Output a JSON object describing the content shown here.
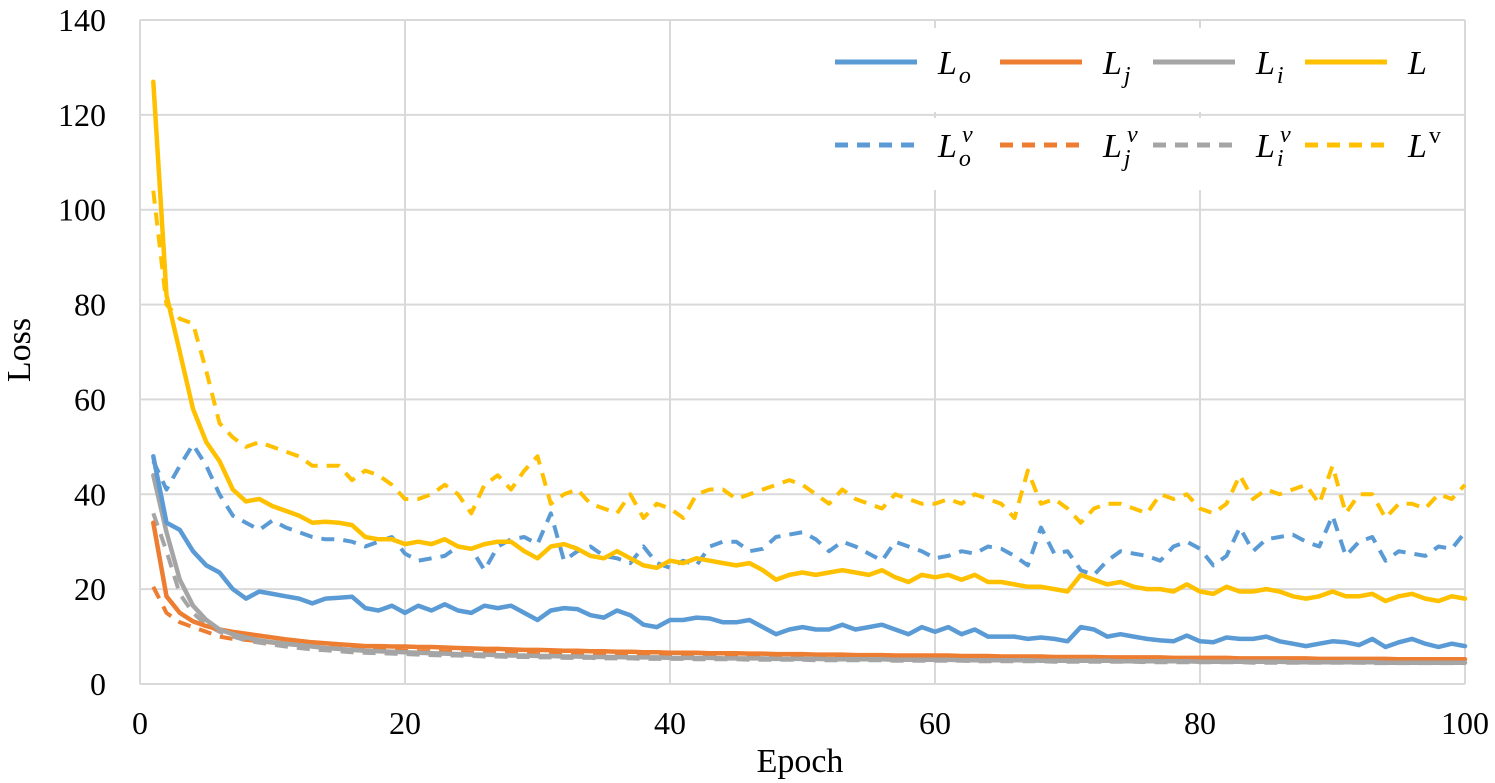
{
  "chart_data": {
    "type": "line",
    "title": "",
    "xlabel": "Epoch",
    "ylabel": "Loss",
    "xlim": [
      0,
      100
    ],
    "ylim": [
      0,
      140
    ],
    "xticks": [
      0,
      20,
      40,
      60,
      80,
      100
    ],
    "yticks": [
      0,
      20,
      40,
      60,
      80,
      100,
      120,
      140
    ],
    "grid": true,
    "legend_position": "top-right",
    "x": [
      1,
      2,
      3,
      4,
      5,
      6,
      7,
      8,
      9,
      10,
      11,
      12,
      13,
      14,
      15,
      16,
      17,
      18,
      19,
      20,
      21,
      22,
      23,
      24,
      25,
      26,
      27,
      28,
      29,
      30,
      31,
      32,
      33,
      34,
      35,
      36,
      37,
      38,
      39,
      40,
      41,
      42,
      43,
      44,
      45,
      46,
      47,
      48,
      49,
      50,
      51,
      52,
      53,
      54,
      55,
      56,
      57,
      58,
      59,
      60,
      61,
      62,
      63,
      64,
      65,
      66,
      67,
      68,
      69,
      70,
      71,
      72,
      73,
      74,
      75,
      76,
      77,
      78,
      79,
      80,
      81,
      82,
      83,
      84,
      85,
      86,
      87,
      88,
      89,
      90,
      91,
      92,
      93,
      94,
      95,
      96,
      97,
      98,
      99,
      100
    ],
    "series": [
      {
        "name": "L_o",
        "label_main": "L",
        "label_sub": "o",
        "label_sup": "",
        "color": "#5b9bd5",
        "dash": "solid",
        "values": [
          48,
          34,
          32.5,
          28,
          25,
          23.5,
          20,
          18,
          19.5,
          19,
          18.5,
          18,
          17,
          18,
          18.2,
          18.4,
          16,
          15.5,
          16.5,
          15,
          16.5,
          15.5,
          16.8,
          15.5,
          15,
          16.5,
          16,
          16.5,
          15,
          13.5,
          15.5,
          16,
          15.8,
          14.5,
          14,
          15.5,
          14.5,
          12.5,
          12,
          13.5,
          13.5,
          14,
          13.8,
          13,
          13,
          13.5,
          12,
          10.5,
          11.5,
          12,
          11.5,
          11.5,
          12.5,
          11.5,
          12,
          12.5,
          11.5,
          10.5,
          12,
          11,
          12,
          10.5,
          11.5,
          10,
          10,
          10,
          9.5,
          9.8,
          9.5,
          9,
          12,
          11.5,
          10,
          10.5,
          10,
          9.5,
          9.2,
          9,
          10.2,
          9,
          8.8,
          9.8,
          9.5,
          9.5,
          10,
          9,
          8.5,
          8,
          8.5,
          9,
          8.8,
          8.2,
          9.5,
          7.8,
          8.8,
          9.5,
          8.5,
          7.8,
          8.5,
          8
        ]
      },
      {
        "name": "L_j",
        "label_main": "L",
        "label_sub": "j",
        "label_sup": "",
        "color": "#ed7d31",
        "dash": "solid",
        "values": [
          34,
          18.5,
          15,
          13.2,
          12.2,
          11.5,
          11,
          10.6,
          10.2,
          9.8,
          9.4,
          9.1,
          8.8,
          8.6,
          8.4,
          8.2,
          8,
          8,
          7.9,
          7.9,
          7.8,
          7.8,
          7.7,
          7.6,
          7.5,
          7.4,
          7.4,
          7.3,
          7.2,
          7.2,
          7.1,
          7,
          7,
          6.9,
          6.9,
          6.8,
          6.8,
          6.7,
          6.7,
          6.6,
          6.6,
          6.6,
          6.5,
          6.5,
          6.5,
          6.4,
          6.4,
          6.3,
          6.3,
          6.3,
          6.2,
          6.2,
          6.2,
          6.1,
          6.1,
          6.1,
          6,
          6,
          6,
          6,
          6,
          5.9,
          5.9,
          5.9,
          5.8,
          5.8,
          5.8,
          5.8,
          5.7,
          5.7,
          5.7,
          5.7,
          5.6,
          5.6,
          5.6,
          5.6,
          5.6,
          5.5,
          5.5,
          5.5,
          5.5,
          5.5,
          5.4,
          5.4,
          5.4,
          5.4,
          5.4,
          5.4,
          5.3,
          5.3,
          5.3,
          5.3,
          5.3,
          5.3,
          5.2,
          5.2,
          5.2,
          5.2,
          5.2,
          5.2
        ]
      },
      {
        "name": "L_i",
        "label_main": "L",
        "label_sub": "i",
        "label_sup": "",
        "color": "#a5a5a5",
        "dash": "solid",
        "values": [
          44,
          32,
          22,
          16.5,
          13.5,
          11.5,
          10.5,
          9.8,
          9.2,
          8.8,
          8.5,
          8.2,
          7.9,
          7.6,
          7.4,
          7.2,
          7,
          6.9,
          6.8,
          6.7,
          6.6,
          6.5,
          6.4,
          6.3,
          6.2,
          6.2,
          6.1,
          6,
          6,
          5.9,
          5.9,
          5.8,
          5.8,
          5.7,
          5.7,
          5.7,
          5.6,
          5.6,
          5.6,
          5.5,
          5.5,
          5.5,
          5.5,
          5.4,
          5.4,
          5.4,
          5.4,
          5.3,
          5.3,
          5.3,
          5.3,
          5.2,
          5.2,
          5.2,
          5.2,
          5.2,
          5.1,
          5.1,
          5.1,
          5.1,
          5.1,
          5,
          5,
          5,
          5,
          5,
          5,
          4.9,
          4.9,
          4.9,
          4.9,
          4.9,
          4.9,
          4.8,
          4.8,
          4.8,
          4.8,
          4.8,
          4.8,
          4.7,
          4.7,
          4.7,
          4.7,
          4.7,
          4.7,
          4.7,
          4.6,
          4.6,
          4.6,
          4.6,
          4.6,
          4.6,
          4.6,
          4.5,
          4.5,
          4.5,
          4.5,
          4.5,
          4.5,
          4.5
        ]
      },
      {
        "name": "L",
        "label_main": "L",
        "label_sub": "",
        "label_sup": "",
        "color": "#ffc000",
        "dash": "solid",
        "values": [
          127,
          82,
          70,
          58,
          51,
          47,
          41,
          38.5,
          39,
          37.5,
          36.5,
          35.5,
          34,
          34.2,
          34,
          33.5,
          31,
          30.5,
          30.5,
          29.5,
          30,
          29.5,
          30.5,
          29,
          28.5,
          29.5,
          30,
          30,
          28,
          26.5,
          29,
          29.5,
          28.5,
          27,
          26.5,
          28,
          26.5,
          25,
          24.5,
          26,
          25.5,
          26.5,
          26,
          25.5,
          25,
          25.5,
          24,
          22,
          23,
          23.5,
          23,
          23.5,
          24,
          23.5,
          23,
          24,
          22.5,
          21.5,
          23,
          22.5,
          23,
          22,
          23,
          21.5,
          21.5,
          21,
          20.5,
          20.5,
          20,
          19.5,
          23,
          22,
          21,
          21.5,
          20.5,
          20,
          20,
          19.5,
          21,
          19.5,
          19,
          20.5,
          19.5,
          19.5,
          20,
          19.5,
          18.5,
          18,
          18.5,
          19.5,
          18.5,
          18.5,
          19,
          17.5,
          18.5,
          19,
          18,
          17.5,
          18.5,
          18
        ]
      },
      {
        "name": "L_o^v",
        "label_main": "L",
        "label_sub": "o",
        "label_sup": "v",
        "color": "#5b9bd5",
        "dash": "dashed",
        "values": [
          47,
          41,
          46,
          50.5,
          46,
          40,
          35.5,
          34,
          32.5,
          34.5,
          33,
          32,
          31,
          30.5,
          30.5,
          30,
          29,
          30,
          31,
          27.5,
          26,
          26.5,
          27,
          29,
          28.5,
          24,
          29,
          30.5,
          31,
          29.5,
          36,
          26,
          28,
          29,
          27,
          26.5,
          25.5,
          29,
          25.5,
          24.5,
          26,
          25,
          29,
          30,
          30,
          28,
          28.5,
          31,
          31.5,
          32,
          30.5,
          28,
          30,
          29,
          27.5,
          26,
          30,
          29,
          28,
          26.5,
          27,
          28,
          27.5,
          29,
          28.5,
          27,
          25,
          33,
          27.5,
          28,
          24,
          23,
          26,
          28,
          27.5,
          27,
          26,
          29,
          30,
          28.5,
          25,
          27,
          33,
          28,
          30.5,
          31,
          31.5,
          30,
          29,
          35.5,
          27,
          30,
          31,
          26,
          28,
          27.5,
          27,
          29,
          28.5,
          32
        ]
      },
      {
        "name": "L_j^v",
        "label_main": "L",
        "label_sub": "j",
        "label_sup": "v",
        "color": "#ed7d31",
        "dash": "dashed",
        "values": [
          20.5,
          15,
          13,
          12,
          11,
          10,
          9.5,
          9.3,
          9,
          8.7,
          8.4,
          8.2,
          7.9,
          7.7,
          7.5,
          7.4,
          7.3,
          7.2,
          7.1,
          7,
          6.9,
          6.9,
          6.8,
          6.7,
          6.6,
          6.6,
          6.5,
          6.5,
          6.4,
          6.3,
          6.3,
          6.2,
          6.2,
          6.1,
          6.1,
          6,
          6,
          6,
          5.9,
          5.9,
          5.9,
          5.8,
          5.8,
          5.8,
          5.7,
          5.7,
          5.7,
          5.7,
          5.6,
          5.6,
          5.6,
          5.6,
          5.5,
          5.5,
          5.5,
          5.5,
          5.5,
          5.4,
          5.4,
          5.4,
          5.4,
          5.4,
          5.3,
          5.3,
          5.3,
          5.3,
          5.3,
          5.3,
          5.2,
          5.2,
          5.2,
          5.2,
          5.2,
          5.2,
          5.2,
          5.1,
          5.1,
          5.1,
          5.1,
          5.1,
          5.1,
          5.1,
          5,
          5,
          5,
          5,
          5,
          5,
          5,
          5,
          4.9,
          4.9,
          4.9,
          4.9,
          4.9,
          4.9,
          4.9,
          4.9,
          4.9,
          4.8
        ]
      },
      {
        "name": "L_i^v",
        "label_main": "L",
        "label_sub": "i",
        "label_sup": "v",
        "color": "#a5a5a5",
        "dash": "dashed",
        "values": [
          36,
          28,
          19,
          15,
          12.5,
          11,
          10,
          9.2,
          8.7,
          8.3,
          7.9,
          7.6,
          7.3,
          7.1,
          6.9,
          6.7,
          6.6,
          6.5,
          6.4,
          6.3,
          6.2,
          6.1,
          6,
          6,
          5.9,
          5.8,
          5.8,
          5.7,
          5.7,
          5.6,
          5.6,
          5.5,
          5.5,
          5.5,
          5.4,
          5.4,
          5.4,
          5.3,
          5.3,
          5.3,
          5.3,
          5.2,
          5.2,
          5.2,
          5.2,
          5.1,
          5.1,
          5.1,
          5.1,
          5.1,
          5,
          5,
          5,
          5,
          5,
          5,
          4.9,
          4.9,
          4.9,
          4.9,
          4.9,
          4.9,
          4.8,
          4.8,
          4.8,
          4.8,
          4.8,
          4.8,
          4.7,
          4.7,
          4.7,
          4.7,
          4.7,
          4.7,
          4.7,
          4.6,
          4.6,
          4.6,
          4.6,
          4.6,
          4.6,
          4.6,
          4.6,
          4.5,
          4.5,
          4.5,
          4.5,
          4.5,
          4.5,
          4.5,
          4.5,
          4.5,
          4.4,
          4.4,
          4.4,
          4.4,
          4.4,
          4.4,
          4.4,
          4.4
        ]
      },
      {
        "name": "L^v",
        "label_main": "L",
        "label_sub": "",
        "label_sup": "v",
        "color": "#ffc000",
        "dash": "dashed",
        "values": [
          104,
          80,
          77,
          76,
          66,
          55,
          52,
          50,
          51,
          50,
          49,
          48,
          46,
          46,
          46,
          43,
          45,
          44,
          42,
          39,
          39,
          40,
          42,
          40,
          36,
          42,
          44,
          41,
          45,
          48,
          38,
          40,
          41,
          38,
          37,
          36,
          40,
          35,
          38,
          37,
          35,
          40,
          41,
          41,
          39,
          40,
          41,
          42,
          43,
          42,
          40,
          38,
          41,
          39,
          38,
          37,
          40,
          39,
          38,
          38,
          39,
          38,
          40,
          39,
          38,
          35,
          45,
          38,
          39,
          37,
          34,
          37,
          38,
          38,
          37,
          36,
          40,
          39,
          40,
          37,
          36,
          38,
          44,
          39,
          41,
          40,
          41,
          42,
          38,
          46,
          36,
          40,
          40,
          35,
          38,
          38,
          37,
          40,
          39,
          42
        ]
      }
    ]
  }
}
